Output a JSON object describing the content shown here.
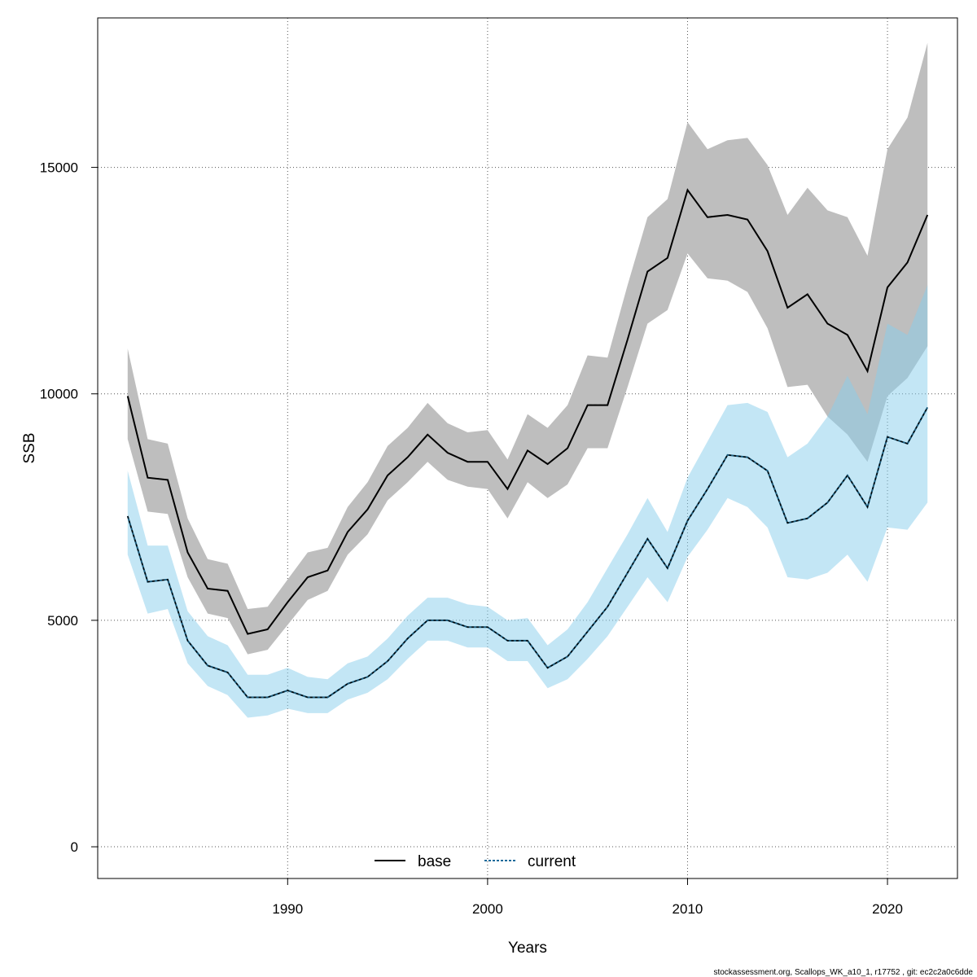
{
  "chart_data": {
    "type": "line",
    "xlabel": "Years",
    "ylabel": "SSB",
    "xlim": [
      1980.5,
      2023.5
    ],
    "ylim": [
      -700,
      18300
    ],
    "x_ticks": [
      1990,
      2000,
      2010,
      2020
    ],
    "y_ticks": [
      0,
      5000,
      10000,
      15000
    ],
    "grid": true,
    "legend_position": "bottom-center",
    "x": [
      1982,
      1983,
      1984,
      1985,
      1986,
      1987,
      1988,
      1989,
      1990,
      1991,
      1992,
      1993,
      1994,
      1995,
      1996,
      1997,
      1998,
      1999,
      2000,
      2001,
      2002,
      2003,
      2004,
      2005,
      2006,
      2007,
      2008,
      2009,
      2010,
      2011,
      2012,
      2013,
      2014,
      2015,
      2016,
      2017,
      2018,
      2019,
      2020,
      2021,
      2022
    ],
    "series": [
      {
        "name": "base",
        "line_color": "#000000",
        "band_color": "#bebebe",
        "values": [
          9950,
          8150,
          8100,
          6500,
          5700,
          5650,
          4700,
          4800,
          5400,
          5950,
          6100,
          6950,
          7450,
          8200,
          8600,
          9100,
          8700,
          8500,
          8500,
          7900,
          8750,
          8450,
          8800,
          9750,
          9750,
          11200,
          12700,
          13000,
          14500,
          13900,
          13950,
          13850,
          13150,
          11900,
          12200,
          11550,
          11300,
          10500,
          12350,
          12900,
          13950
        ],
        "lower": [
          9000,
          7400,
          7350,
          5950,
          5150,
          5050,
          4250,
          4350,
          4900,
          5450,
          5650,
          6450,
          6900,
          7650,
          8050,
          8500,
          8100,
          7950,
          7900,
          7250,
          8050,
          7700,
          8000,
          8800,
          8800,
          10150,
          11550,
          11850,
          13100,
          12550,
          12500,
          12250,
          11450,
          10150,
          10200,
          9500,
          9100,
          8500,
          9950,
          10350,
          11050
        ],
        "upper": [
          11000,
          9000,
          8900,
          7250,
          6350,
          6250,
          5250,
          5300,
          5900,
          6500,
          6600,
          7500,
          8050,
          8850,
          9250,
          9800,
          9350,
          9150,
          9200,
          8550,
          9550,
          9250,
          9750,
          10850,
          10800,
          12400,
          13900,
          14300,
          16000,
          15400,
          15600,
          15650,
          15050,
          13950,
          14550,
          14050,
          13900,
          13050,
          15400,
          16100,
          17750
        ]
      },
      {
        "name": "current",
        "line_color": "#000000",
        "band_color": "#87ceeb",
        "values": [
          7300,
          5850,
          5900,
          4550,
          4000,
          3850,
          3300,
          3300,
          3450,
          3300,
          3300,
          3600,
          3750,
          4100,
          4600,
          5000,
          5000,
          4850,
          4850,
          4550,
          4550,
          3950,
          4200,
          4750,
          5300,
          6050,
          6800,
          6150,
          7200,
          7900,
          8650,
          8600,
          8300,
          7150,
          7250,
          7600,
          8200,
          7500,
          9050,
          8900,
          9700
        ],
        "lower": [
          6450,
          5150,
          5250,
          4050,
          3550,
          3350,
          2850,
          2900,
          3050,
          2950,
          2950,
          3250,
          3400,
          3700,
          4150,
          4550,
          4550,
          4400,
          4400,
          4100,
          4100,
          3500,
          3700,
          4150,
          4650,
          5300,
          5950,
          5400,
          6400,
          7000,
          7700,
          7500,
          7050,
          5950,
          5900,
          6050,
          6450,
          5850,
          7050,
          7000,
          7600
        ],
        "upper": [
          8300,
          6650,
          6650,
          5200,
          4650,
          4450,
          3800,
          3800,
          3950,
          3750,
          3700,
          4050,
          4200,
          4600,
          5100,
          5500,
          5500,
          5350,
          5300,
          5000,
          5050,
          4450,
          4800,
          5400,
          6150,
          6900,
          7700,
          6950,
          8150,
          8950,
          9750,
          9800,
          9600,
          8600,
          8900,
          9500,
          10400,
          9550,
          11550,
          11300,
          12400
        ]
      }
    ]
  },
  "footer": {
    "text": "stockassessment.org, Scallops_WK_a10_1, r17752 , git: ec2c2a0c6dde"
  }
}
